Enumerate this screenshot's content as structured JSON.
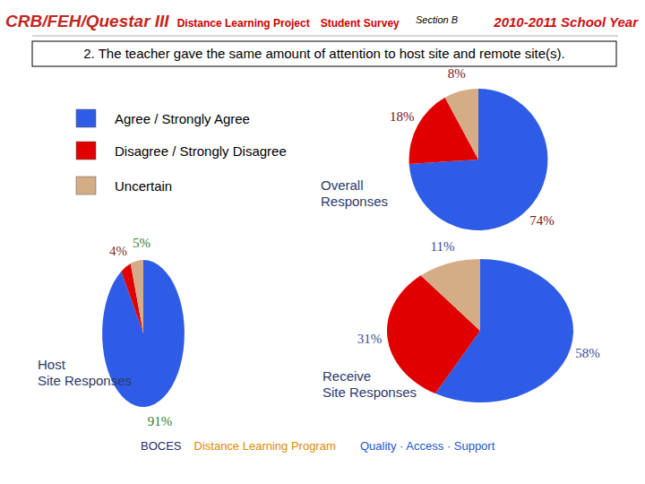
{
  "header": {
    "title": "CRB/FEH/Questar III",
    "project": "Distance Learning Project",
    "survey": "Student Survey",
    "section": "Section B",
    "year": "2010-2011 School Year"
  },
  "question": "2. The teacher gave the same amount of attention to host site and remote site(s).",
  "footer": {
    "org": "BOCES",
    "program": "Distance Learning Program",
    "motto": "Quality · Access · Support"
  },
  "chart_data": {
    "type": "pie",
    "categories": [
      "Agree / Strongly Agree",
      "Disagree / Strongly Disagree",
      "Uncertain"
    ],
    "colors": [
      "#2f5ce6",
      "#e00000",
      "#d4ad87"
    ],
    "legend": "upper left",
    "data_labels": true,
    "series": [
      {
        "name": "Overall Responses",
        "values": [
          74,
          18,
          8
        ],
        "value_labels": [
          "74%",
          "18%",
          "8%"
        ]
      },
      {
        "name": "Host Site Responses",
        "values": [
          91,
          4,
          5
        ],
        "value_labels": [
          "91%",
          "4%",
          "5%"
        ]
      },
      {
        "name": "Receive Site Responses",
        "values": [
          58,
          31,
          11
        ],
        "value_labels": [
          "58%",
          "31%",
          "11%"
        ]
      }
    ]
  }
}
